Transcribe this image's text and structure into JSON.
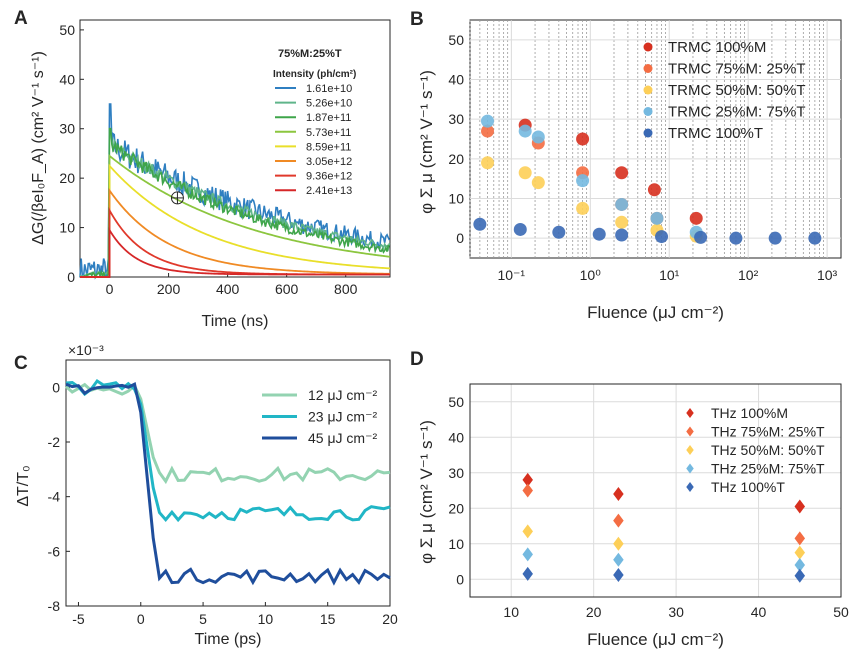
{
  "chart_data": [
    {
      "panel": "A",
      "type": "line",
      "xlabel": "Time (ns)",
      "ylabel": "ΔG(/βeI₀F_A) (cm² V⁻¹ s⁻¹)",
      "xlim": [
        -100,
        950
      ],
      "ylim": [
        0,
        52
      ],
      "xticks": [
        0,
        200,
        400,
        600,
        800
      ],
      "yticks": [
        0,
        10,
        20,
        30,
        40,
        50
      ],
      "legend_title": "75%M:25%T",
      "legend_subtitle": "Intensity (ph/cm²)",
      "legend_position": "top-right",
      "series": [
        {
          "name": "1.61e+10",
          "color": "#2f7fc1",
          "peak": 27,
          "tau": 700,
          "noisy": true
        },
        {
          "name": "5.26e+10",
          "color": "#5fb58a",
          "peak": 27,
          "tau": 650,
          "noisy": true
        },
        {
          "name": "1.87e+11",
          "color": "#3fa54a",
          "peak": 27,
          "tau": 600,
          "noisy": true
        },
        {
          "name": "5.73e+11",
          "color": "#8cc63f",
          "peak": 24,
          "tau": 500,
          "noisy": false
        },
        {
          "name": "8.59e+11",
          "color": "#e9df2a",
          "peak": 22,
          "tau": 330,
          "noisy": false
        },
        {
          "name": "3.05e+12",
          "color": "#f08a24",
          "peak": 17,
          "tau": 200,
          "noisy": false
        },
        {
          "name": "9.36e+12",
          "color": "#e0392b",
          "peak": 13,
          "tau": 120,
          "noisy": false
        },
        {
          "name": "2.41e+13",
          "color": "#d62728",
          "peak": 9,
          "tau": 90,
          "noisy": false
        }
      ]
    },
    {
      "panel": "B",
      "type": "scatter",
      "xscale": "log",
      "xlabel": "Fluence (μJ cm⁻²)",
      "ylabel": "φ Σ μ (cm² V⁻¹ s⁻¹)",
      "xlim": [
        0.03,
        1500
      ],
      "ylim": [
        -5,
        55
      ],
      "xticks": [
        "10⁻¹",
        "10⁰",
        "10¹",
        "10²",
        "10³"
      ],
      "yticks": [
        0,
        10,
        20,
        30,
        40,
        50
      ],
      "legend_position": "top-right",
      "series": [
        {
          "name": "TRMC 100%M",
          "color": "#d7301f",
          "x": [
            0.15,
            0.8,
            2.5,
            6.5,
            22
          ],
          "y": [
            28.5,
            25,
            16.5,
            12.2,
            5
          ]
        },
        {
          "name": "TRMC 75%M: 25%T",
          "color": "#f46d43",
          "x": [
            0.05,
            0.22,
            0.8,
            2.5,
            7
          ],
          "y": [
            27,
            24,
            16.5,
            8.5,
            5
          ]
        },
        {
          "name": "TRMC 50%M: 50%T",
          "color": "#fdcf58",
          "x": [
            0.05,
            0.15,
            0.22,
            0.8,
            2.5,
            7,
            22
          ],
          "y": [
            19,
            16.5,
            14,
            7.5,
            4,
            2,
            0.5
          ]
        },
        {
          "name": "TRMC 25%M: 75%T",
          "color": "#74b9e0",
          "x": [
            0.05,
            0.15,
            0.22,
            0.8,
            2.5,
            7,
            22
          ],
          "y": [
            29.5,
            27,
            25.5,
            14.5,
            8.5,
            5,
            1.5
          ]
        },
        {
          "name": "TRMC 100%T",
          "color": "#3a69b5",
          "x": [
            0.04,
            0.13,
            0.4,
            1.3,
            2.5,
            8,
            25,
            70,
            220,
            700
          ],
          "y": [
            3.5,
            2.2,
            1.5,
            1,
            0.8,
            0.4,
            0.2,
            0,
            0,
            0
          ]
        }
      ]
    },
    {
      "panel": "C",
      "type": "line",
      "xlabel": "Time (ps)",
      "ylabel": "ΔT/T₀",
      "exponent_label": "×10⁻³",
      "xlim": [
        -6,
        20
      ],
      "ylim": [
        -8,
        1
      ],
      "xticks": [
        -5,
        0,
        5,
        10,
        15,
        20
      ],
      "yticks": [
        0,
        -2,
        -4,
        -6,
        -8
      ],
      "legend_position": "top-right",
      "series": [
        {
          "name": "12 μJ cm⁻²",
          "color": "#93d3b1",
          "level": -3.2
        },
        {
          "name": "23 μJ cm⁻²",
          "color": "#21b6c6",
          "level": -4.6
        },
        {
          "name": "45 μJ cm⁻²",
          "color": "#1f4e9c",
          "level": -6.9
        }
      ]
    },
    {
      "panel": "D",
      "type": "scatter",
      "xlabel": "Fluence (μJ cm⁻²)",
      "ylabel": "φ Σ μ (cm² V⁻¹ s⁻¹)",
      "xlim": [
        5,
        50
      ],
      "ylim": [
        -5,
        55
      ],
      "xticks": [
        10,
        20,
        30,
        40,
        50
      ],
      "yticks": [
        0,
        10,
        20,
        30,
        40,
        50
      ],
      "legend_position": "top-right",
      "series": [
        {
          "name": "THz 100%M",
          "color": "#d7301f",
          "x": [
            12,
            23,
            45
          ],
          "y": [
            28,
            24,
            20.5
          ]
        },
        {
          "name": "THz 75%M: 25%T",
          "color": "#f46d43",
          "x": [
            12,
            23,
            45
          ],
          "y": [
            25,
            16.5,
            11.5
          ]
        },
        {
          "name": "THz 50%M: 50%T",
          "color": "#fdcf58",
          "x": [
            12,
            23,
            45
          ],
          "y": [
            13.5,
            10,
            7.5
          ]
        },
        {
          "name": "THz 25%M: 75%T",
          "color": "#74b9e0",
          "x": [
            12,
            23,
            45
          ],
          "y": [
            7,
            5.5,
            4
          ]
        },
        {
          "name": "THz 100%T",
          "color": "#3a69b5",
          "x": [
            12,
            23,
            45
          ],
          "y": [
            1.5,
            1.2,
            1
          ]
        }
      ]
    }
  ],
  "panel_labels": [
    "A",
    "B",
    "C",
    "D"
  ]
}
